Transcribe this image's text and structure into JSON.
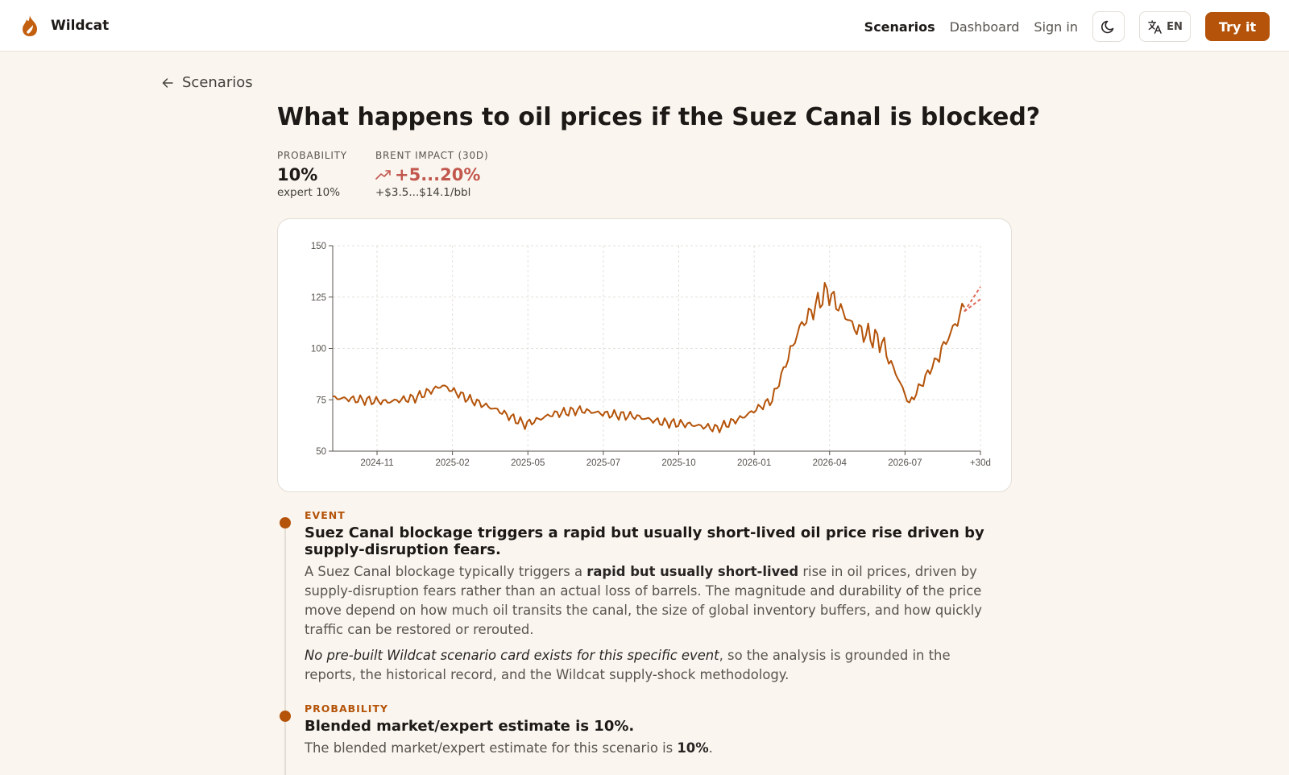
{
  "header": {
    "brand": "Wildcat",
    "nav": {
      "scenarios": "Scenarios",
      "dashboard": "Dashboard",
      "sign_in": "Sign in"
    },
    "lang": "EN",
    "cta": "Try it",
    "accent": "#b45309"
  },
  "back_label": "Scenarios",
  "title": "What happens to oil prices if the Suez Canal is blocked?",
  "stats": {
    "probability": {
      "label": "PROBABILITY",
      "value": "10%",
      "sub": "expert 10%"
    },
    "impact": {
      "label": "BRENT IMPACT (30D)",
      "value": "+5...20%",
      "sub": "+$3.5...$14.1/bbl",
      "icon": "trend-up-icon",
      "color": "#c2574e"
    }
  },
  "chart_data": {
    "type": "line",
    "xlabel": "",
    "ylabel": "",
    "ylim": [
      50,
      150
    ],
    "yticks": [
      "50",
      "75",
      "100",
      "125",
      "150"
    ],
    "xticks": [
      "2024-11",
      "2025-02",
      "2025-05",
      "2025-07",
      "2025-10",
      "2026-01",
      "2026-04",
      "2026-07",
      "+30d"
    ],
    "grid": true,
    "line_color": "#b45309",
    "projection_color": "#e06a5a",
    "series": [
      {
        "name": "",
        "x": [
          "2024-10",
          "2024-11",
          "2024-12",
          "2025-01",
          "2025-02",
          "2025-03",
          "2025-04",
          "2025-05",
          "2025-06",
          "2025-07",
          "2025-08",
          "2025-09",
          "2025-10",
          "2025-11",
          "2025-12",
          "2026-01",
          "2026-02",
          "2026-03",
          "2026-04",
          "2026-05",
          "2026-06",
          "2026-07",
          "2026-08",
          "2026-09"
        ],
        "values": [
          76,
          75,
          74,
          76,
          82,
          75,
          70,
          63,
          68,
          70,
          68,
          67,
          64,
          63,
          61,
          67,
          75,
          110,
          128,
          110,
          103,
          73,
          95,
          120
        ]
      }
    ],
    "projection": {
      "x": [
        "2026-09",
        "+30d"
      ],
      "low": [
        118,
        124
      ],
      "high": [
        118,
        130
      ]
    }
  },
  "timeline": [
    {
      "tag": "EVENT",
      "heading": "Suez Canal blockage triggers a rapid but usually short-lived oil price rise driven by supply-disruption fears.",
      "body_a": "A Suez Canal blockage typically triggers a ",
      "body_b": "rapid but usually short-lived",
      "body_c": " rise in oil prices, driven by supply-disruption fears rather than an actual loss of barrels. The magnitude and durability of the price move depend on how much oil transits the canal, the size of global inventory buffers, and how quickly traffic can be restored or rerouted.",
      "note_i": "No pre-built Wildcat scenario card exists for this specific event",
      "note_rest": ", so the analysis is grounded in the reports, the historical record, and the Wildcat supply-shock methodology."
    },
    {
      "tag": "PROBABILITY",
      "heading": "Blended market/expert estimate is 10%.",
      "body_a": "The blended market/expert estimate for this scenario is ",
      "body_b": "10%",
      "body_c": "."
    }
  ]
}
